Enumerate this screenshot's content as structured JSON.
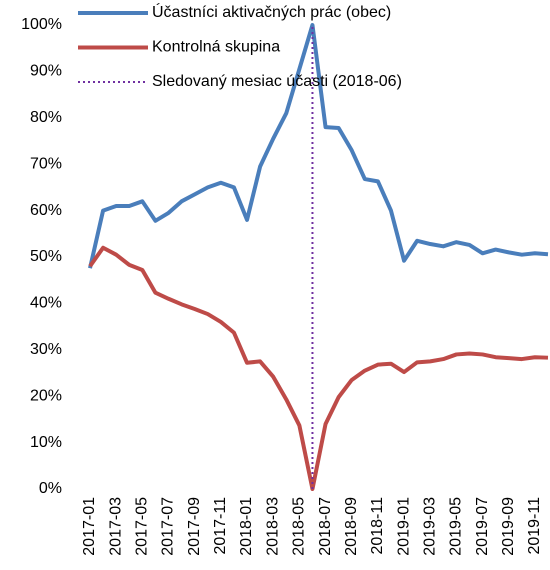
{
  "chart_data": {
    "type": "line",
    "categories": [
      "2017-01",
      null,
      "2017-03",
      null,
      "2017-05",
      null,
      "2017-07",
      null,
      "2017-09",
      null,
      "2017-11",
      null,
      "2018-01",
      null,
      "2018-03",
      null,
      "2018-05",
      null,
      "2018-07",
      null,
      "2018-09",
      null,
      "2018-11",
      null,
      "2019-01",
      null,
      "2019-03",
      null,
      "2019-05",
      null,
      "2019-07",
      null,
      "2019-09",
      null,
      "2019-11",
      null
    ],
    "series": [
      {
        "name": "Účastníci aktivačných prác (obec)",
        "color": "#4a7ebb",
        "values": [
          47.6,
          60,
          61,
          61,
          62,
          57.8,
          59.5,
          62,
          63.5,
          65,
          66,
          65,
          58,
          69.5,
          75.5,
          81,
          90.5,
          100,
          78,
          77.8,
          73,
          66.8,
          66.3,
          60,
          49.2,
          53.5,
          52.8,
          52.3,
          53.2,
          52.6,
          50.8,
          51.6,
          51,
          50.5,
          50.8,
          50.6
        ]
      },
      {
        "name": "Kontrolná skupina",
        "color": "#be4b48",
        "values": [
          48,
          52,
          50.5,
          48.3,
          47.2,
          42.3,
          41,
          39.8,
          38.8,
          37.7,
          36,
          33.7,
          27.2,
          27.5,
          24.2,
          19.3,
          13.7,
          0,
          14,
          19.8,
          23.5,
          25.5,
          26.8,
          27,
          25.2,
          27.3,
          27.5,
          28,
          29,
          29.2,
          29,
          28.4,
          28.2,
          28,
          28.4,
          28.3
        ]
      }
    ],
    "vline": {
      "name": "Sledovaný mesiac účasti (2018-06)",
      "color": "#7030a0",
      "x": 17
    },
    "ylim": [
      0,
      100
    ],
    "yticks": [
      {
        "value": 0,
        "label": "0%"
      },
      {
        "value": 10,
        "label": "10%"
      },
      {
        "value": 20,
        "label": "20%"
      },
      {
        "value": 30,
        "label": "30%"
      },
      {
        "value": 40,
        "label": "40%"
      },
      {
        "value": 50,
        "label": "50%"
      },
      {
        "value": 60,
        "label": "60%"
      },
      {
        "value": 70,
        "label": "70%"
      },
      {
        "value": 80,
        "label": "80%"
      },
      {
        "value": 90,
        "label": "90%"
      },
      {
        "value": 100,
        "label": "100%"
      }
    ],
    "legend": "upper left"
  }
}
